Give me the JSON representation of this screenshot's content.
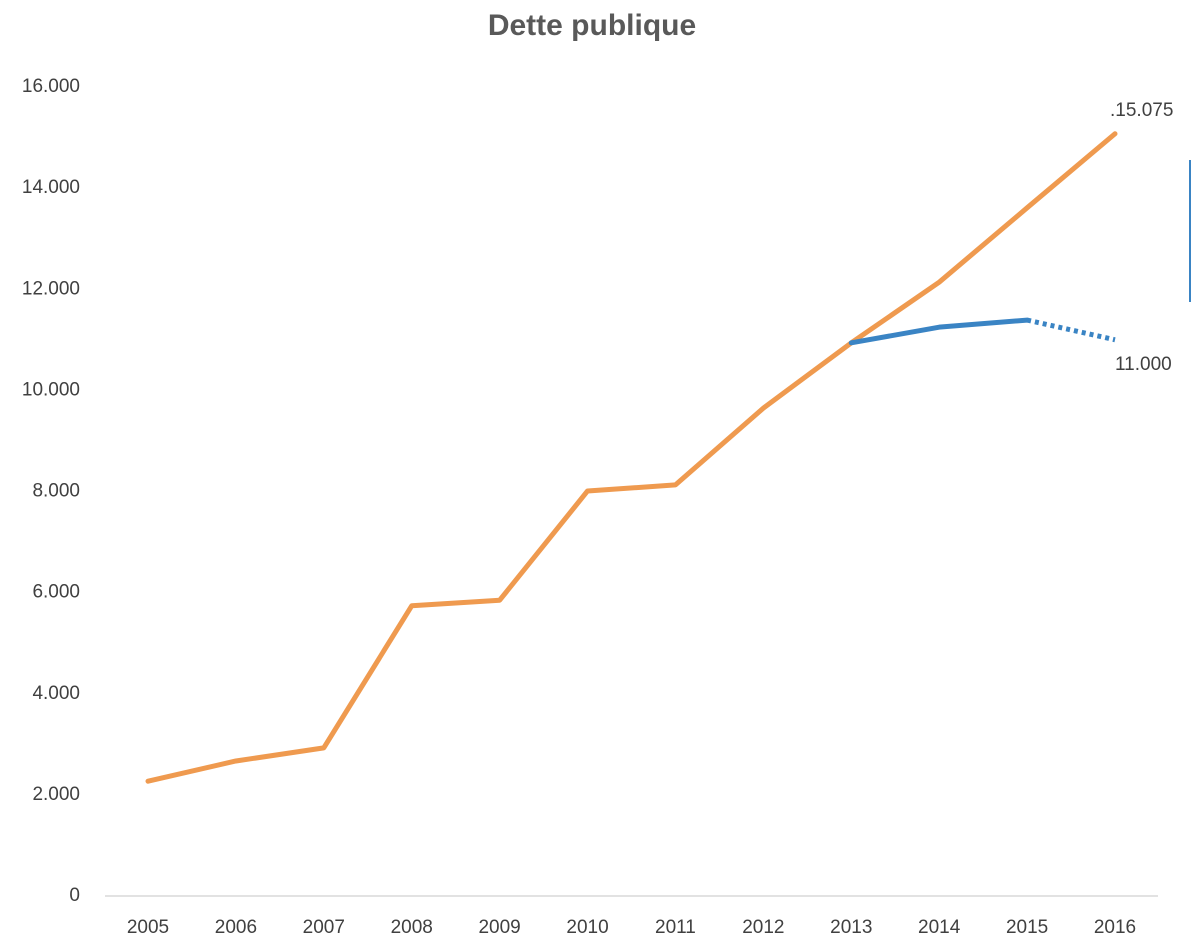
{
  "chart_data": {
    "type": "line",
    "title": "Dette publique",
    "categories": [
      "2005",
      "2006",
      "2007",
      "2008",
      "2009",
      "2010",
      "2011",
      "2012",
      "2013",
      "2014",
      "2015",
      "2016"
    ],
    "series": [
      {
        "color": "#ef9a4f",
        "style": "solid",
        "values": [
          2270,
          2670,
          2930,
          5740,
          5850,
          8010,
          8130,
          9650,
          10940,
          12140,
          13610,
          15075
        ],
        "value_labels": [
          null,
          null,
          null,
          null,
          null,
          null,
          null,
          null,
          null,
          null,
          null,
          ".15.075"
        ]
      },
      {
        "color": "#3a84c4",
        "style": "solid",
        "values": [
          null,
          null,
          null,
          null,
          null,
          null,
          null,
          null,
          10940,
          11250,
          11390,
          null
        ]
      },
      {
        "color": "#3a84c4",
        "style": "dotted",
        "values": [
          null,
          null,
          null,
          null,
          null,
          null,
          null,
          null,
          null,
          null,
          11390,
          11000
        ],
        "value_labels": [
          null,
          null,
          null,
          null,
          null,
          null,
          null,
          null,
          null,
          null,
          null,
          "11.000"
        ]
      }
    ],
    "ylim": [
      0,
      16000
    ],
    "yticks": [
      0,
      {
        "value": 2000,
        "label": "2.000"
      },
      {
        "value": 4000,
        "label": "4.000"
      },
      {
        "value": 6000,
        "label": "6.000"
      },
      {
        "value": 8000,
        "label": "8.000"
      },
      {
        "value": 10000,
        "label": "10.000"
      },
      {
        "value": 12000,
        "label": "12.000"
      },
      {
        "value": 14000,
        "label": "14.000"
      },
      {
        "value": 16000,
        "label": "16.000"
      }
    ],
    "grid": false
  }
}
